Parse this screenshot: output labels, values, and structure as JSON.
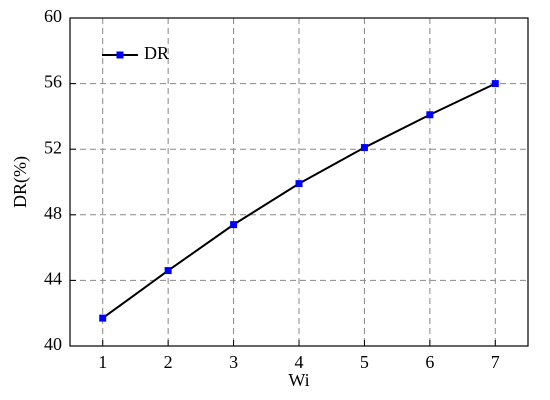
{
  "chart_data": {
    "type": "line",
    "x_label": "Wi",
    "y_label": "DR(%)",
    "x": [
      1,
      2,
      3,
      4,
      5,
      6,
      7
    ],
    "series": [
      {
        "name": "DR",
        "color": "#0000ff",
        "line_color": "#000000",
        "values": [
          41.7,
          44.6,
          47.4,
          49.9,
          52.1,
          54.1,
          56.0
        ]
      }
    ],
    "xlim": [
      0.5,
      7.5
    ],
    "xticks": [
      1,
      2,
      3,
      4,
      5,
      6,
      7
    ],
    "ylim": [
      40,
      60
    ],
    "yticks": [
      40,
      44,
      48,
      52,
      56,
      60
    ],
    "grid": true,
    "legend": "top-left"
  }
}
